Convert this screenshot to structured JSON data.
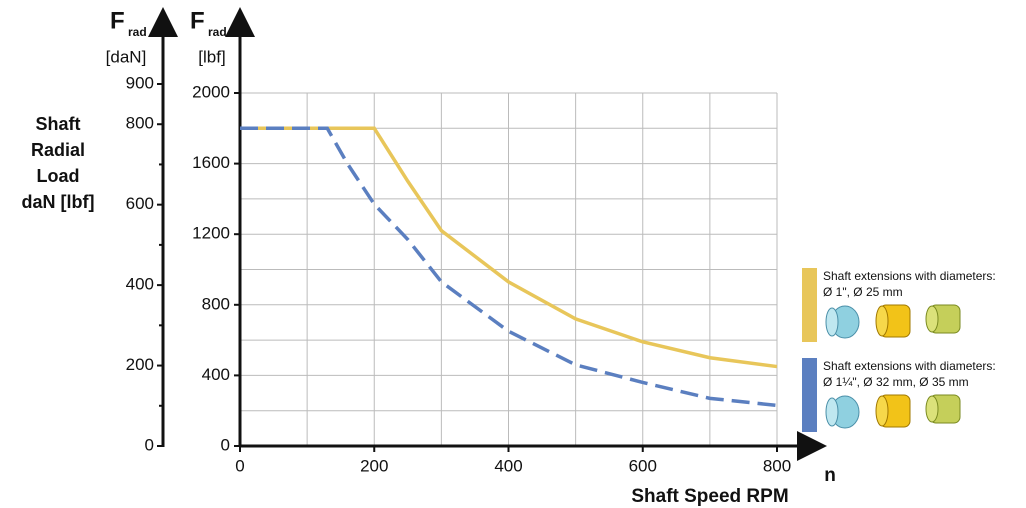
{
  "chart_data": {
    "type": "line",
    "y_label": [
      "Shaft",
      "Radial",
      "Load",
      "daN [lbf]"
    ],
    "y_symbol": "F",
    "y_subscript": "rad",
    "y2_unit": "[daN]",
    "y_unit": "[lbf]",
    "x_label": "Shaft Speed RPM",
    "x_symbol": "n",
    "xlim": [
      0,
      800
    ],
    "xticks": [
      0,
      200,
      400,
      600,
      800
    ],
    "ylim": [
      0,
      2000
    ],
    "yticks": [
      0,
      400,
      800,
      1200,
      1600,
      2000
    ],
    "y2lim": [
      0,
      900
    ],
    "y2ticks": [
      0,
      200,
      400,
      600,
      800,
      900
    ],
    "y2minor": [
      100,
      300,
      500,
      700
    ],
    "grid": true,
    "legend_heading": "Shaft extensions with diameters:",
    "series": [
      {
        "name": "Ø 1\", Ø 25 mm",
        "color": "#e8c65a",
        "dashed": false,
        "x": [
          0,
          200,
          250,
          300,
          400,
          500,
          600,
          700,
          800
        ],
        "values": [
          1800,
          1800,
          1500,
          1220,
          930,
          720,
          590,
          500,
          450
        ]
      },
      {
        "name": "Ø 1¼\", Ø 32 mm, Ø 35 mm",
        "color": "#5b7fc0",
        "dashed": true,
        "x": [
          0,
          130,
          160,
          200,
          250,
          300,
          400,
          500,
          600,
          700,
          800
        ],
        "values": [
          1800,
          1800,
          1600,
          1370,
          1170,
          930,
          650,
          460,
          360,
          270,
          230
        ]
      }
    ]
  }
}
